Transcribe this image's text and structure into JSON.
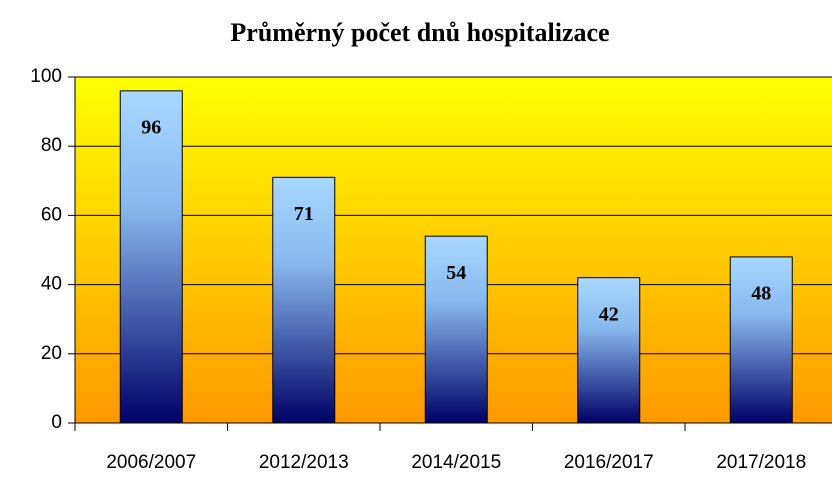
{
  "chart_data": {
    "type": "bar",
    "title": "Průměrný počet dnů hospitalizace",
    "categories": [
      "2006/2007",
      "2012/2013",
      "2014/2015",
      "2016/2017",
      "2017/2018"
    ],
    "values": [
      96,
      71,
      54,
      42,
      48
    ],
    "ylim": [
      0,
      100
    ],
    "yticks": [
      0,
      20,
      40,
      60,
      80,
      100
    ],
    "grid": true
  }
}
